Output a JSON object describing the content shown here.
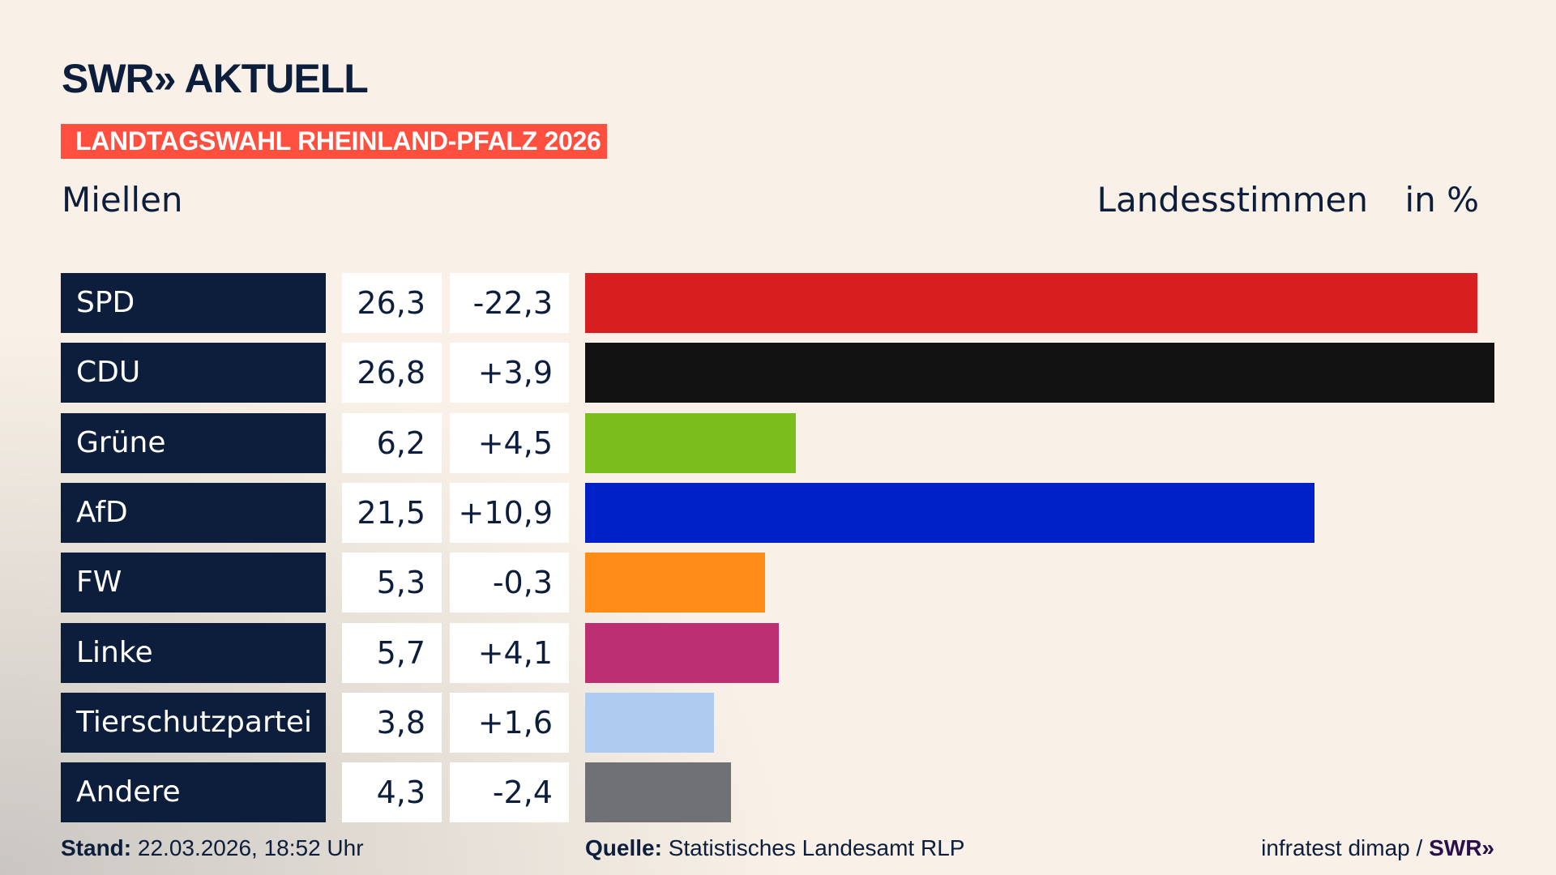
{
  "header": {
    "logo": "SWR» AKTUELL",
    "banner": "LANDTAGSWAHL RHEINLAND-PFALZ 2026",
    "place": "Miellen",
    "label": "Landesstimmen",
    "unit": "in %"
  },
  "chart_data": {
    "type": "bar",
    "orientation": "horizontal",
    "categories": [
      "SPD",
      "CDU",
      "Grüne",
      "AfD",
      "FW",
      "Linke",
      "Tierschutzpartei",
      "Andere"
    ],
    "values": [
      26.3,
      26.8,
      6.2,
      21.5,
      5.3,
      5.7,
      3.8,
      4.3
    ],
    "value_labels": [
      "26,3",
      "26,8",
      "6,2",
      "21,5",
      "5,3",
      "5,7",
      "3,8",
      "4,3"
    ],
    "diff_labels": [
      "-22,3",
      "+3,9",
      "+4,5",
      "+10,9",
      "-0,3",
      "+4,1",
      "+1,6",
      "-2,4"
    ],
    "diffs": [
      -22.3,
      3.9,
      4.5,
      10.9,
      -0.3,
      4.1,
      1.6,
      -2.4
    ],
    "colors": [
      "#d81f20",
      "#121212",
      "#7abd1c",
      "#0020c8",
      "#ff8c17",
      "#bc3073",
      "#aecbf0",
      "#707174"
    ],
    "xlim": [
      0,
      26.8
    ],
    "grid": false
  },
  "footer": {
    "stand_label": "Stand:",
    "stand": "22.03.2026, 18:52 Uhr",
    "quelle_label": "Quelle:",
    "quelle": "Statistisches Landesamt RLP",
    "credit": "infratest dimap / ",
    "credit_logo": "SWR»"
  }
}
